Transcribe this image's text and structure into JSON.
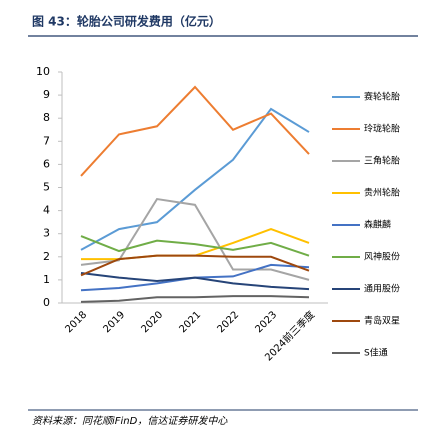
{
  "chart_data": {
    "type": "line",
    "title": "图 43：轮胎公司研发费用（亿元）",
    "source": "资料来源：同花顺iFinD，信达证券研发中心",
    "categories": [
      "2018",
      "2019",
      "2020",
      "2021",
      "2022",
      "2023",
      "2024前三季度"
    ],
    "ylim": [
      0,
      10
    ],
    "yticks": [
      0,
      1,
      2,
      3,
      4,
      5,
      6,
      7,
      8,
      9,
      10
    ],
    "legend": "right",
    "series": [
      {
        "name": "赛轮轮胎",
        "color": "#5b9bd5",
        "values": [
          2.3,
          3.2,
          3.5,
          4.9,
          6.2,
          8.4,
          7.4
        ]
      },
      {
        "name": "玲珑轮胎",
        "color": "#ed7d31",
        "values": [
          5.5,
          7.3,
          7.65,
          9.35,
          7.5,
          8.2,
          6.45
        ]
      },
      {
        "name": "三角轮胎",
        "color": "#a5a5a5",
        "values": [
          1.65,
          1.85,
          4.5,
          4.25,
          1.45,
          1.45,
          1.0
        ]
      },
      {
        "name": "贵州轮胎",
        "color": "#ffc000",
        "values": [
          1.9,
          1.9,
          2.05,
          2.05,
          2.6,
          3.2,
          2.6
        ]
      },
      {
        "name": "森麒麟",
        "color": "#4472c4",
        "values": [
          0.55,
          0.65,
          0.85,
          1.1,
          1.15,
          1.65,
          1.55
        ]
      },
      {
        "name": "风神股份",
        "color": "#70ad47",
        "values": [
          2.9,
          2.25,
          2.7,
          2.55,
          2.3,
          2.6,
          2.05
        ]
      },
      {
        "name": "通用股份",
        "color": "#264478",
        "values": [
          1.3,
          1.1,
          0.95,
          1.1,
          0.85,
          0.7,
          0.6
        ]
      },
      {
        "name": "青岛双星",
        "color": "#9e480e",
        "values": [
          1.2,
          1.9,
          2.05,
          2.05,
          2.0,
          2.0,
          1.4
        ]
      },
      {
        "name": "S佳通",
        "color": "#636363",
        "values": [
          0.05,
          0.1,
          0.25,
          0.25,
          0.3,
          0.3,
          0.25
        ]
      }
    ]
  }
}
